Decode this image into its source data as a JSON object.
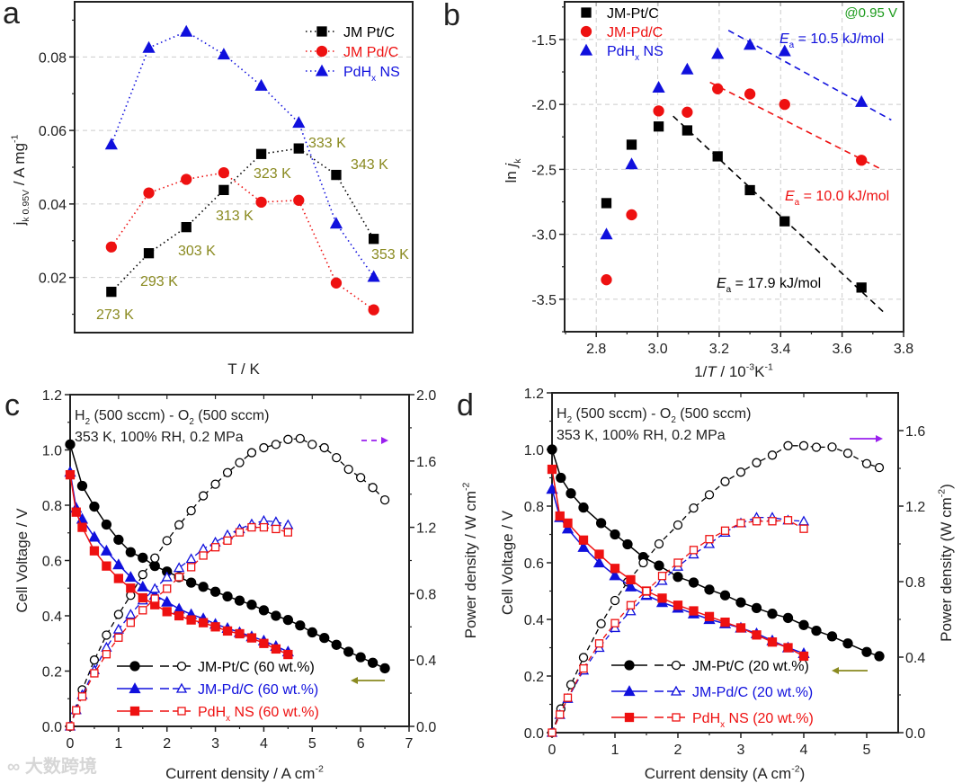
{
  "panel_letters": [
    "a",
    "b",
    "c",
    "d"
  ],
  "watermark": "大数跨境",
  "colors": {
    "pt": "#000000",
    "pd": "#ee1111",
    "pdhx": "#1010dd",
    "olive": "#8a8a20",
    "green": "#1a9a1a",
    "purple": "#9a20ee",
    "grid": "#cccccc"
  },
  "chart_data": [
    {
      "id": "a",
      "type": "line",
      "xlabel": "T / K",
      "ylabel": "j",
      "ylabel_sub": "k 0.95V",
      "ylabel_rest": " / A mg",
      "ylabel_sup": "-1",
      "x": [
        "273 K",
        "293 K",
        "303 K",
        "313 K",
        "323 K",
        "333 K",
        "343 K",
        "353 K"
      ],
      "ylim": [
        0.005,
        0.095
      ],
      "yticks": [
        "0.02",
        "0.04",
        "0.06",
        "0.08"
      ],
      "grid": "horizontal dashed",
      "legend": "top-right",
      "series": [
        {
          "name": "JM Pt/C",
          "name_sub": "",
          "name_tail": "",
          "color": "#000000",
          "marker": "square",
          "values": [
            0.0161,
            0.0266,
            0.0337,
            0.0438,
            0.0536,
            0.0551,
            0.0479,
            0.0305
          ]
        },
        {
          "name": "JM Pd/C",
          "name_sub": "",
          "name_tail": "",
          "color": "#ee1111",
          "marker": "circle",
          "values": [
            0.0283,
            0.043,
            0.0467,
            0.0485,
            0.0405,
            0.041,
            0.0185,
            0.0112
          ]
        },
        {
          "name": "PdH",
          "name_sub": "x",
          "name_tail": " NS",
          "color": "#1010dd",
          "marker": "triangle",
          "values": [
            0.0562,
            0.0825,
            0.0869,
            0.0807,
            0.0722,
            0.0621,
            0.0347,
            0.0202
          ]
        }
      ]
    },
    {
      "id": "b",
      "type": "scatter",
      "xlabel_parts": [
        "1/",
        "T",
        " / 10",
        "-3",
        "K",
        "-1"
      ],
      "ylabel": "ln ",
      "ylabel_italic": "j",
      "ylabel_sub": "k",
      "xlim": [
        2.697,
        3.8
      ],
      "ylim": [
        -3.75,
        -1.21
      ],
      "xticks": [
        "2.8",
        "3.0",
        "3.2",
        "3.4",
        "3.6",
        "3.8"
      ],
      "yticks": [
        "-3.5",
        "-3.0",
        "-2.5",
        "-2.0",
        "-1.5"
      ],
      "grid": "both dashed",
      "legend": "top-left",
      "condition": "@0.95 V",
      "x": [
        2.833,
        2.915,
        3.003,
        3.096,
        3.195,
        3.3,
        3.413,
        3.663
      ],
      "series": [
        {
          "name": "JM-Pt/C",
          "name_sub": "",
          "name_tail": "",
          "color": "#000000",
          "marker": "square",
          "values": [
            -2.76,
            -2.31,
            -2.17,
            -2.2,
            -2.4,
            -2.66,
            -2.9,
            -3.41
          ],
          "fit": {
            "x": [
              3.05,
              3.74
            ],
            "y": [
              -2.09,
              -3.61
            ]
          },
          "ea": "17.9 kJ/mol"
        },
        {
          "name": "JM-Pd/C",
          "name_sub": "",
          "name_tail": "",
          "color": "#ee1111",
          "marker": "circle",
          "values": [
            -3.35,
            -2.85,
            -2.05,
            -2.06,
            -1.88,
            -1.92,
            -2.0,
            -2.43
          ],
          "fit": {
            "x": [
              3.17,
              3.72
            ],
            "y": [
              -1.83,
              -2.49
            ]
          },
          "ea": "10.0 kJ/mol"
        },
        {
          "name": "PdH",
          "name_sub": "x",
          "name_tail": " NS",
          "color": "#1010dd",
          "marker": "triangle",
          "values": [
            -3.0,
            -2.46,
            -1.87,
            -1.73,
            -1.61,
            -1.54,
            -1.59,
            -1.98
          ],
          "fit": {
            "x": [
              3.23,
              3.76
            ],
            "y": [
              -1.43,
              -2.12
            ]
          },
          "ea": "10.5 kJ/mol"
        }
      ],
      "ea_prefix": "E",
      "ea_sub": "a",
      "ea_eq": " = "
    },
    {
      "id": "c",
      "type": "line",
      "xlabel": "Current density / A cm",
      "xlabel_sup": "-2",
      "ylabel": "Cell Voltage / V",
      "y2label": "Power density / W cm",
      "y2label_sup": "-2",
      "y2label_close": "",
      "xlim": [
        0,
        7
      ],
      "ylim": [
        0,
        1.2
      ],
      "y2lim": [
        0,
        2.0
      ],
      "xticks": [
        "0",
        "1",
        "2",
        "3",
        "4",
        "5",
        "6",
        "7"
      ],
      "yticks": [
        "0.0",
        "0.2",
        "0.4",
        "0.6",
        "0.8",
        "1.0",
        "1.2"
      ],
      "y2ticks": [
        "0.0",
        "0.4",
        "0.8",
        "1.2",
        "1.6",
        "2.0"
      ],
      "conditions": [
        [
          "H",
          "2",
          " (500 sccm) - O",
          "2",
          " (500 sccm)"
        ],
        [
          "353 K, 100% RH, 0.2 MPa"
        ]
      ],
      "legend": "bottom-center",
      "series": [
        {
          "name": "JM-Pt/C (60 wt.%)",
          "name_pre": "",
          "name_sub": "",
          "color": "#000000",
          "marker": "circle",
          "x": [
            0,
            0.25,
            0.5,
            0.75,
            1,
            1.25,
            1.5,
            1.75,
            2,
            2.25,
            2.5,
            2.75,
            3,
            3.25,
            3.5,
            3.75,
            4,
            4.25,
            4.5,
            4.75,
            5,
            5.25,
            5.5,
            5.75,
            6,
            6.25,
            6.5
          ],
          "voltage": [
            1.02,
            0.87,
            0.795,
            0.73,
            0.675,
            0.63,
            0.61,
            0.58,
            0.56,
            0.54,
            0.52,
            0.505,
            0.487,
            0.47,
            0.455,
            0.44,
            0.42,
            0.4,
            0.385,
            0.365,
            0.34,
            0.32,
            0.295,
            0.27,
            0.25,
            0.23,
            0.21
          ],
          "power": [
            0,
            0.22,
            0.4,
            0.55,
            0.675,
            0.79,
            0.915,
            1.015,
            1.12,
            1.215,
            1.3,
            1.39,
            1.46,
            1.53,
            1.59,
            1.65,
            1.68,
            1.7,
            1.73,
            1.735,
            1.7,
            1.68,
            1.62,
            1.55,
            1.5,
            1.44,
            1.365
          ]
        },
        {
          "name": "JM-Pd/C (60 wt.%)",
          "name_pre": "",
          "name_sub": "",
          "color": "#1010dd",
          "marker": "triangle",
          "x": [
            0,
            0.125,
            0.25,
            0.5,
            0.75,
            1,
            1.25,
            1.5,
            1.75,
            2,
            2.25,
            2.5,
            2.75,
            3,
            3.25,
            3.5,
            3.75,
            4,
            4.25,
            4.5
          ],
          "voltage": [
            0.92,
            0.79,
            0.75,
            0.685,
            0.635,
            0.585,
            0.54,
            0.505,
            0.475,
            0.45,
            0.425,
            0.405,
            0.39,
            0.37,
            0.355,
            0.34,
            0.325,
            0.31,
            0.29,
            0.27
          ],
          "power": [
            0,
            0.099,
            0.19,
            0.34,
            0.476,
            0.585,
            0.675,
            0.76,
            0.83,
            0.9,
            0.956,
            1.01,
            1.07,
            1.11,
            1.154,
            1.19,
            1.22,
            1.24,
            1.233,
            1.215
          ]
        },
        {
          "name": " NS (60 wt.%)",
          "name_pre": "PdH",
          "name_sub": "x",
          "color": "#ee1111",
          "marker": "square",
          "x": [
            0,
            0.125,
            0.25,
            0.5,
            0.75,
            1,
            1.25,
            1.5,
            1.75,
            2,
            2.25,
            2.5,
            2.75,
            3,
            3.25,
            3.5,
            3.75,
            4,
            4.25,
            4.5
          ],
          "voltage": [
            0.91,
            0.775,
            0.72,
            0.635,
            0.58,
            0.535,
            0.5,
            0.465,
            0.44,
            0.415,
            0.4,
            0.385,
            0.375,
            0.36,
            0.345,
            0.335,
            0.32,
            0.3,
            0.28,
            0.26
          ],
          "power": [
            0,
            0.097,
            0.18,
            0.32,
            0.435,
            0.535,
            0.625,
            0.7,
            0.77,
            0.83,
            0.9,
            0.96,
            1.03,
            1.08,
            1.12,
            1.17,
            1.2,
            1.2,
            1.19,
            1.17
          ]
        }
      ]
    },
    {
      "id": "d",
      "type": "line",
      "xlabel": "Current density (A cm",
      "xlabel_sup": "-2",
      "xlabel_close": ")",
      "ylabel": "Cell Voltage / V",
      "y2label": "Power density (W cm",
      "y2label_sup": "-2",
      "y2label_close": ")",
      "xlim": [
        0,
        5.5
      ],
      "ylim": [
        0,
        1.2
      ],
      "y2lim": [
        0,
        1.8
      ],
      "xticks": [
        "0",
        "1",
        "2",
        "3",
        "4",
        "5"
      ],
      "yticks": [
        "0.0",
        "0.2",
        "0.4",
        "0.6",
        "0.8",
        "1.0",
        "1.2"
      ],
      "y2ticks": [
        "0.0",
        "0.4",
        "0.8",
        "1.2",
        "1.6"
      ],
      "conditions": [
        [
          "H",
          "2",
          " (500 sccm) - O",
          "2",
          " (500 sccm)"
        ],
        [
          "353 K, 100% RH, 0.2 MPa"
        ]
      ],
      "legend": "bottom-center",
      "series": [
        {
          "name": "JM-Pt/C (20 wt.%)",
          "name_pre": "",
          "name_sub": "",
          "color": "#000000",
          "marker": "circle",
          "x": [
            0,
            0.14,
            0.3,
            0.5,
            0.78,
            1,
            1.2,
            1.45,
            1.7,
            2,
            2.25,
            2.5,
            2.75,
            3,
            3.25,
            3.5,
            3.75,
            4,
            4.2,
            4.45,
            4.7,
            5,
            5.2
          ],
          "voltage": [
            1.0,
            0.9,
            0.845,
            0.795,
            0.74,
            0.7,
            0.665,
            0.62,
            0.59,
            0.55,
            0.53,
            0.505,
            0.485,
            0.46,
            0.44,
            0.42,
            0.405,
            0.38,
            0.36,
            0.34,
            0.315,
            0.285,
            0.27
          ],
          "power": [
            0,
            0.126,
            0.254,
            0.398,
            0.577,
            0.7,
            0.798,
            0.9,
            1.0,
            1.1,
            1.19,
            1.26,
            1.33,
            1.38,
            1.43,
            1.47,
            1.52,
            1.52,
            1.512,
            1.513,
            1.48,
            1.425,
            1.404
          ]
        },
        {
          "name": "JM-Pd/C (20 wt.%)",
          "name_pre": "",
          "name_sub": "",
          "color": "#1010dd",
          "marker": "triangle",
          "x": [
            0,
            0.125,
            0.25,
            0.5,
            0.75,
            1,
            1.25,
            1.5,
            1.75,
            2,
            2.25,
            2.5,
            2.75,
            3,
            3.25,
            3.5,
            3.75,
            4
          ],
          "voltage": [
            0.86,
            0.76,
            0.72,
            0.655,
            0.6,
            0.555,
            0.515,
            0.485,
            0.46,
            0.44,
            0.42,
            0.4,
            0.385,
            0.37,
            0.35,
            0.325,
            0.3,
            0.28
          ],
          "power": [
            0,
            0.095,
            0.18,
            0.33,
            0.45,
            0.555,
            0.644,
            0.73,
            0.805,
            0.88,
            0.945,
            1.0,
            1.06,
            1.11,
            1.14,
            1.14,
            1.125,
            1.12
          ]
        },
        {
          "name": " NS (20 wt.%)",
          "name_pre": "PdH",
          "name_sub": "x",
          "color": "#ee1111",
          "marker": "square",
          "x": [
            0,
            0.125,
            0.25,
            0.5,
            0.75,
            1,
            1.25,
            1.5,
            1.75,
            2,
            2.25,
            2.5,
            2.75,
            3,
            3.25,
            3.5,
            3.75,
            4
          ],
          "voltage": [
            0.93,
            0.765,
            0.74,
            0.68,
            0.63,
            0.58,
            0.54,
            0.5,
            0.475,
            0.45,
            0.43,
            0.41,
            0.39,
            0.37,
            0.345,
            0.32,
            0.3,
            0.27
          ],
          "power": [
            0,
            0.096,
            0.185,
            0.34,
            0.4725,
            0.58,
            0.675,
            0.75,
            0.83,
            0.9,
            0.9675,
            1.025,
            1.07,
            1.11,
            1.12,
            1.12,
            1.125,
            1.08
          ]
        }
      ]
    }
  ]
}
